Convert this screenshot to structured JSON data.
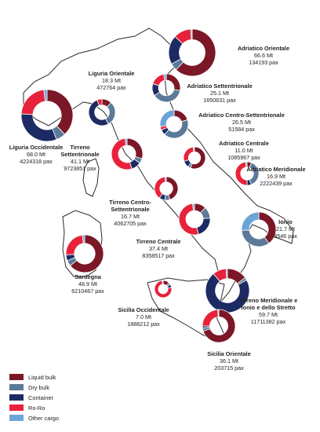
{
  "colors": {
    "liquid_bulk": "#7b1726",
    "dry_bulk": "#5b7a99",
    "container": "#1c2b63",
    "ro_ro": "#e8223a",
    "other_cargo": "#6ba5d8"
  },
  "legend": [
    {
      "label": "Liquid bulk",
      "color": "#7b1726"
    },
    {
      "label": "Dry bulk",
      "color": "#5b7a99"
    },
    {
      "label": "Container",
      "color": "#1c2b63"
    },
    {
      "label": "Ro-Ro",
      "color": "#e8223a"
    },
    {
      "label": "Other cargo",
      "color": "#6ba5d8"
    }
  ],
  "ports": [
    {
      "name": "Adriatico Orientale",
      "tonnage": "66.6 Mt",
      "pax": "134193 pax",
      "shares": [
        0.62,
        0.05,
        0.2,
        0.12,
        0.01
      ]
    },
    {
      "name": "Liguria Orientale",
      "tonnage": "18.3 Mt",
      "pax": "472764 pax",
      "shares": [
        0.12,
        0.3,
        0.52,
        0.06,
        0.0
      ]
    },
    {
      "name": "Adriatico Settentrionale",
      "tonnage": "25.1 Mt",
      "pax": "1650631 pax",
      "shares": [
        0.28,
        0.38,
        0.14,
        0.17,
        0.03
      ]
    },
    {
      "name": "Adriatico Centro-Settentrionale",
      "tonnage": "26.5 Mt",
      "pax": "51584 pax",
      "shares": [
        0.2,
        0.42,
        0.06,
        0.04,
        0.28
      ]
    },
    {
      "name": "Liguria Occidentale",
      "tonnage": "68.0 Mt",
      "pax": "4224318 pax",
      "shares": [
        0.38,
        0.06,
        0.32,
        0.22,
        0.02
      ]
    },
    {
      "name": "Tirreno Settentrionale",
      "tonnage": "41.1 Mt",
      "pax": "9723851 pax",
      "shares": [
        0.3,
        0.05,
        0.1,
        0.53,
        0.02
      ]
    },
    {
      "name": "Adriatico Centrale",
      "tonnage": "11.0 Mt",
      "pax": "1085967 pax",
      "shares": [
        0.56,
        0.04,
        0.1,
        0.28,
        0.02
      ]
    },
    {
      "name": "Adriatico Meridionale",
      "tonnage": "16.9 Mt",
      "pax": "2222439 pax",
      "shares": [
        0.06,
        0.38,
        0.06,
        0.48,
        0.02
      ]
    },
    {
      "name": "Tirreno Centro-Settentrionale",
      "tonnage": "16.7 Mt",
      "pax": "4062705 pax",
      "shares": [
        0.45,
        0.07,
        0.08,
        0.38,
        0.02
      ]
    },
    {
      "name": "Tirreno Centrale",
      "tonnage": "37.4 Mt",
      "pax": "8358517 pax",
      "shares": [
        0.12,
        0.12,
        0.22,
        0.52,
        0.02
      ]
    },
    {
      "name": "Ionio",
      "tonnage": "21.7 Mt",
      "pax": "8546 pax",
      "shares": [
        0.4,
        0.34,
        0.0,
        0.0,
        0.26
      ]
    },
    {
      "name": "Sardegna",
      "tonnage": "48.9 Mt",
      "pax": "6210467 pax",
      "shares": [
        0.64,
        0.05,
        0.05,
        0.24,
        0.02
      ]
    },
    {
      "name": "Tirreno Meridionale e Ionio e dello Stretto",
      "tonnage": "59.7 Mt",
      "pax": "11711382 pax",
      "shares": [
        0.15,
        0.02,
        0.72,
        0.1,
        0.01
      ]
    },
    {
      "name": "Sicilia Occidentale",
      "tonnage": "7.0 Mt",
      "pax": "1888212 pax",
      "shares": [
        0.12,
        0.04,
        0.06,
        0.76,
        0.02
      ]
    },
    {
      "name": "Sicilia Orientale",
      "tonnage": "36.1 Mt",
      "pax": "203715 pax",
      "shares": [
        0.7,
        0.03,
        0.02,
        0.24,
        0.01
      ]
    }
  ]
}
